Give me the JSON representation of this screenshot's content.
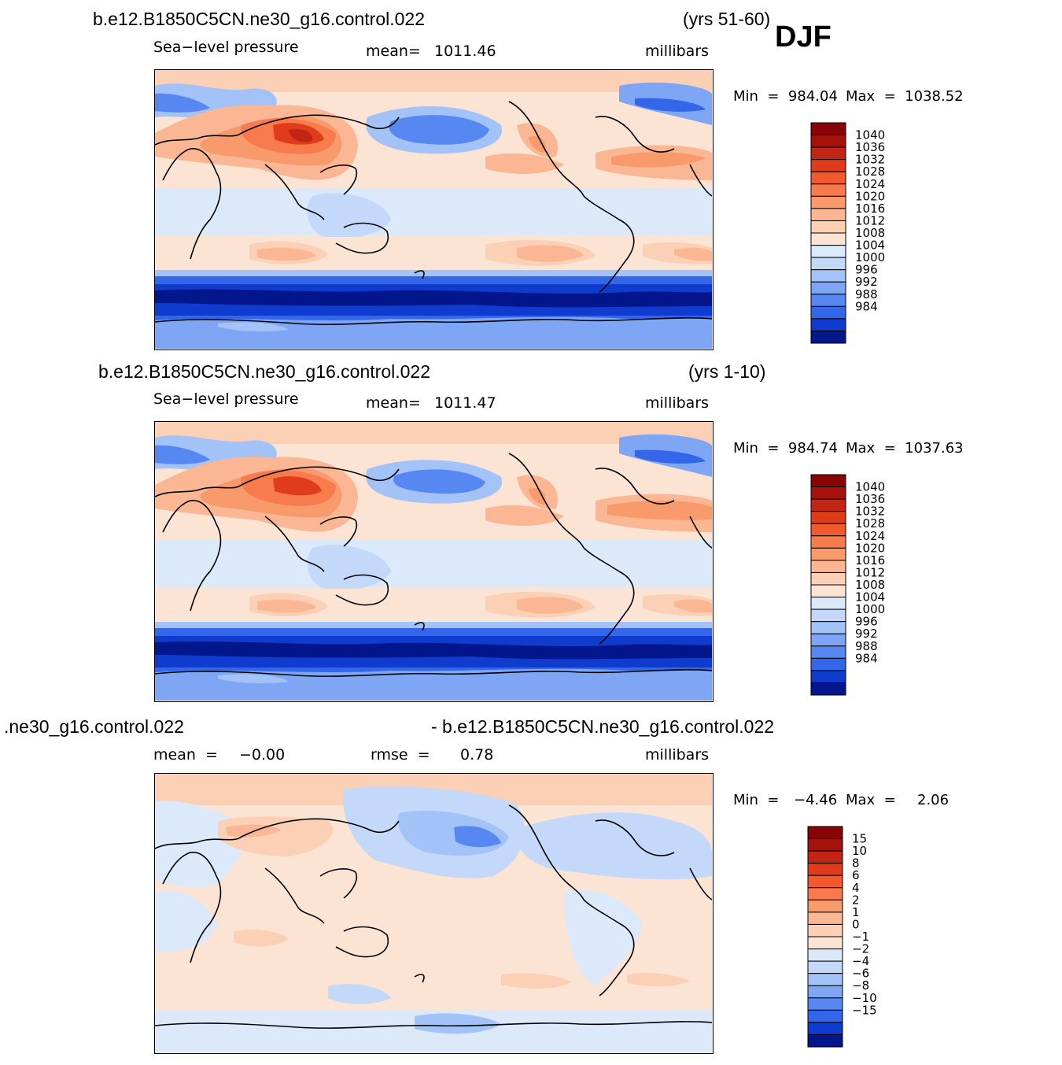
{
  "season": "DJF",
  "colors": {
    "positive": [
      "#fbe4d4",
      "#fcd0b4",
      "#fbb793",
      "#f99a6d",
      "#f77b4d",
      "#f25a2c",
      "#e03c1b",
      "#c22513",
      "#a5120c",
      "#870505"
    ],
    "negative": [
      "#dce9fb",
      "#c4d9f9",
      "#a3c2f7",
      "#7ea6f4",
      "#5787f0",
      "#3466ea",
      "#1d4ee0",
      "#0f3bce",
      "#072bb0",
      "#03168c"
    ],
    "coastline": "#000000"
  },
  "chart_data": [
    {
      "type": "heatmap",
      "case_name": "b.e12.B1850C5CN.ne30_g16.control.022",
      "years": "(yrs 51-60)",
      "variable": "Sea−level pressure",
      "stat_label": "mean=",
      "stat_value": "1011.46",
      "units": "millibars",
      "min_label": "Min  =  984.04",
      "max_label": "Max  =  1038.52",
      "min": 984.04,
      "max": 1038.52,
      "mean": 1011.46,
      "colorbar_levels": [
        "1040",
        "1036",
        "1032",
        "1028",
        "1024",
        "1020",
        "1016",
        "1012",
        "1008",
        "1004",
        "1000",
        "996",
        "992",
        "988",
        "984"
      ],
      "colorbar_colors": [
        "#870505",
        "#a5120c",
        "#c22513",
        "#e03c1b",
        "#f25a2c",
        "#f77b4d",
        "#f99a6d",
        "#fbb793",
        "#fcd0b4",
        "#fbe4d4",
        "#dce9fb",
        "#c4d9f9",
        "#a3c2f7",
        "#7ea6f4",
        "#5787f0",
        "#3466ea",
        "#0f3bce",
        "#03168c"
      ]
    },
    {
      "type": "heatmap",
      "case_name": "b.e12.B1850C5CN.ne30_g16.control.022",
      "years": "(yrs 1-10)",
      "variable": "Sea−level pressure",
      "stat_label": "mean=",
      "stat_value": "1011.47",
      "units": "millibars",
      "min_label": "Min  =  984.74",
      "max_label": "Max  =  1037.63",
      "min": 984.74,
      "max": 1037.63,
      "mean": 1011.47,
      "colorbar_levels": [
        "1040",
        "1036",
        "1032",
        "1028",
        "1024",
        "1020",
        "1016",
        "1012",
        "1008",
        "1004",
        "1000",
        "996",
        "992",
        "988",
        "984"
      ],
      "colorbar_colors": [
        "#870505",
        "#a5120c",
        "#c22513",
        "#e03c1b",
        "#f25a2c",
        "#f77b4d",
        "#f99a6d",
        "#fbb793",
        "#fcd0b4",
        "#fbe4d4",
        "#dce9fb",
        "#c4d9f9",
        "#a3c2f7",
        "#7ea6f4",
        "#5787f0",
        "#3466ea",
        "#0f3bce",
        "#03168c"
      ]
    },
    {
      "type": "heatmap",
      "case_left": ".ne30_g16.control.022",
      "case_right": "- b.e12.B1850C5CN.ne30_g16.control.022",
      "mean_label": "mean  =",
      "mean_value": "−0.00",
      "rmse_label": "rmse  =",
      "rmse_value": "0.78",
      "units": "millibars",
      "min_label": "Min  =",
      "min_value": "−4.46",
      "max_label": "Max  =",
      "max_value": "2.06",
      "min": -4.46,
      "max": 2.06,
      "mean": -0.0,
      "rmse": 0.78,
      "colorbar_levels": [
        "15",
        "10",
        "8",
        "6",
        "4",
        "2",
        "1",
        "0",
        "−1",
        "−2",
        "−4",
        "−6",
        "−8",
        "−10",
        "−15"
      ],
      "colorbar_colors": [
        "#870505",
        "#a5120c",
        "#c22513",
        "#e03c1b",
        "#f25a2c",
        "#f77b4d",
        "#f99a6d",
        "#fbb793",
        "#fcd0b4",
        "#fbe4d4",
        "#dce9fb",
        "#c4d9f9",
        "#a3c2f7",
        "#7ea6f4",
        "#5787f0",
        "#3466ea",
        "#0f3bce",
        "#03168c"
      ]
    }
  ]
}
